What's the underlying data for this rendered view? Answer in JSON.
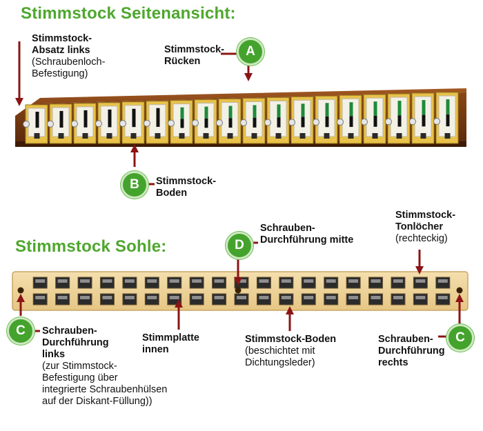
{
  "colors": {
    "title_green": "#4ea72e",
    "badge_green": "#44a32c",
    "arrow_red": "#8b1414",
    "wood_brown": "#7a3b12",
    "sole_wood": "#efd59e"
  },
  "side_view": {
    "title": "Stimmstock Seitenansicht:",
    "label_shoulder_l1": "Stimmstock-",
    "label_shoulder_l2": "Absatz links",
    "label_shoulder_l3": "(Schraubenloch-",
    "label_shoulder_l4": "Befestigung)",
    "label_back_l1": "Stimmstock-",
    "label_back_l2": "Rücken",
    "badge_a": "A",
    "label_bottom_l1": "Stimmstock-",
    "label_bottom_l2": "Boden",
    "badge_b": "B"
  },
  "sole": {
    "title": "Stimmstock Sohle:",
    "badge_d": "D",
    "label_mid_l1": "Schrauben-",
    "label_mid_l2": "Durchführung mitte",
    "label_holes_l1": "Stimmstock-",
    "label_holes_l2": "Tonlöcher",
    "label_holes_l3": "(rechteckig)",
    "badge_c_left": "C",
    "label_left_l1": "Schrauben-",
    "label_left_l2": "Durchführung",
    "label_left_l3": "links",
    "label_left_l4": "(zur Stimmstock-",
    "label_left_l5": "Befestigung über",
    "label_left_l6": "integrierte Schraubenhülsen",
    "label_left_l7": "auf der Diskant-Füllung))",
    "label_plate_l1": "Stimmplatte",
    "label_plate_l2": "innen",
    "label_floor_l1": "Stimmstock-Boden",
    "label_floor_l2": "(beschichtet mit",
    "label_floor_l3": "Dichtungsleder)",
    "label_right_l1": "Schrauben-",
    "label_right_l2": "Durchführung",
    "label_right_l3": "rechts",
    "badge_c_right": "C"
  }
}
